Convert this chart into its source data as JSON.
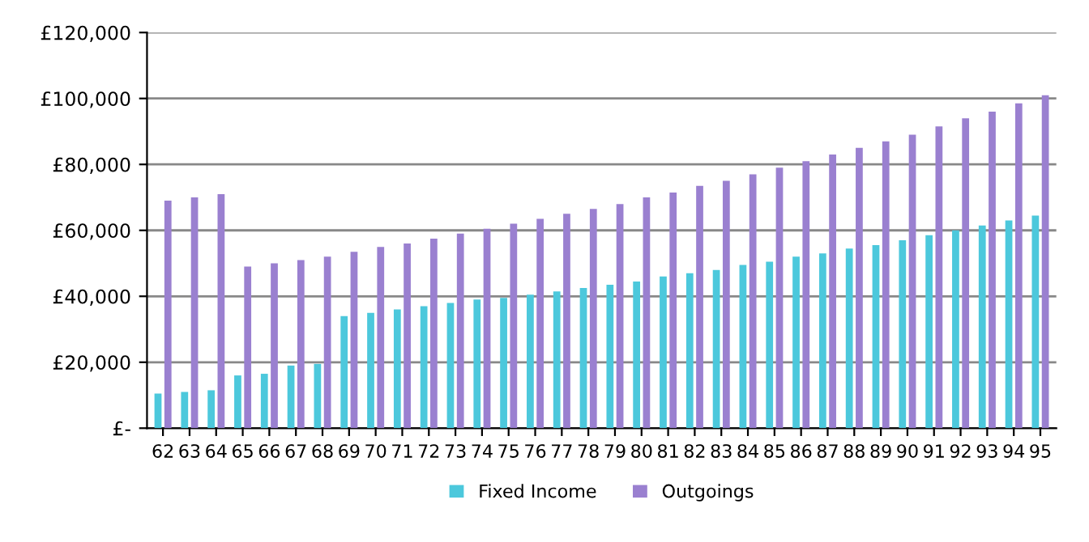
{
  "chart_data": {
    "type": "bar",
    "categories": [
      "62",
      "63",
      "64",
      "65",
      "66",
      "67",
      "68",
      "69",
      "70",
      "71",
      "72",
      "73",
      "74",
      "75",
      "76",
      "77",
      "78",
      "79",
      "80",
      "81",
      "82",
      "83",
      "84",
      "85",
      "86",
      "87",
      "88",
      "89",
      "90",
      "91",
      "92",
      "93",
      "94",
      "95"
    ],
    "series": [
      {
        "name": "Fixed Income",
        "color": "#4cc8dc",
        "values": [
          10500,
          11000,
          11500,
          16000,
          16500,
          19000,
          19500,
          34000,
          35000,
          36000,
          37000,
          38000,
          39000,
          39500,
          40500,
          41500,
          42500,
          43500,
          44500,
          46000,
          47000,
          48000,
          49500,
          50500,
          52000,
          53000,
          54500,
          55500,
          57000,
          58500,
          60000,
          61500,
          63000,
          64500
        ]
      },
      {
        "name": "Outgoings",
        "color": "#9a80d0",
        "values": [
          69000,
          70000,
          71000,
          49000,
          50000,
          51000,
          52000,
          53500,
          55000,
          56000,
          57500,
          59000,
          60500,
          62000,
          63500,
          65000,
          66500,
          68000,
          70000,
          71500,
          73500,
          75000,
          77000,
          79000,
          81000,
          83000,
          85000,
          87000,
          89000,
          91500,
          94000,
          96000,
          98500,
          101000
        ]
      }
    ],
    "ylim": [
      0,
      120000
    ],
    "yticks": [
      {
        "value": 0,
        "label": "£-"
      },
      {
        "value": 20000,
        "label": "£20,000"
      },
      {
        "value": 40000,
        "label": "£40,000"
      },
      {
        "value": 60000,
        "label": "£60,000"
      },
      {
        "value": 80000,
        "label": "£80,000"
      },
      {
        "value": 100000,
        "label": "£100,000"
      },
      {
        "value": 120000,
        "label": "£120,000"
      }
    ],
    "grid": "y",
    "legend": "bottom"
  }
}
